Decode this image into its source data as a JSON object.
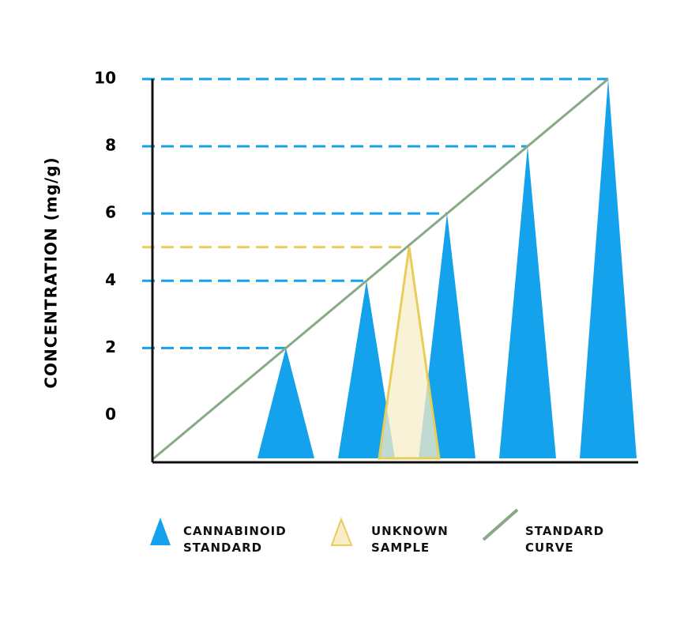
{
  "chart_data": {
    "type": "peaks",
    "y_label": "CONCENTRATION (mg/g)",
    "ylim": [
      -1.4,
      10
    ],
    "yticks": [
      0,
      2,
      4,
      6,
      8,
      10
    ],
    "series": [
      {
        "name": "CANNABINOID STANDARD",
        "color": "#14a2ec",
        "values": [
          2,
          4,
          6,
          8,
          10
        ]
      },
      {
        "name": "UNKNOWN SAMPLE",
        "color": "#e8cd5a",
        "values": [
          5
        ]
      }
    ],
    "standard_curve": {
      "name": "STANDARD CURVE",
      "color": "#88a985"
    }
  }
}
